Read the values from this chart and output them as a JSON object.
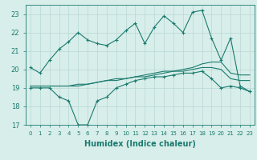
{
  "xlabel": "Humidex (Indice chaleur)",
  "background_color": "#d8eeea",
  "grid_color": "#b8d8d4",
  "line_color": "#1a7a6e",
  "xlim": [
    -0.5,
    23.5
  ],
  "ylim": [
    17,
    23.5
  ],
  "yticks": [
    17,
    18,
    19,
    20,
    21,
    22,
    23
  ],
  "xticks": [
    0,
    1,
    2,
    3,
    4,
    5,
    6,
    7,
    8,
    9,
    10,
    11,
    12,
    13,
    14,
    15,
    16,
    17,
    18,
    19,
    20,
    21,
    22,
    23
  ],
  "line1_x": [
    0,
    1,
    2,
    3,
    4,
    5,
    6,
    7,
    8,
    9,
    10,
    11,
    12,
    13,
    14,
    15,
    16,
    17,
    18,
    19,
    20,
    21,
    22,
    23
  ],
  "line1_y": [
    20.1,
    19.8,
    20.5,
    21.1,
    21.5,
    22.0,
    21.6,
    21.4,
    21.3,
    21.6,
    22.1,
    22.5,
    21.4,
    22.3,
    22.9,
    22.5,
    22.0,
    23.1,
    23.2,
    21.7,
    20.5,
    21.7,
    19.1,
    18.8
  ],
  "line2_x": [
    0,
    1,
    2,
    3,
    4,
    5,
    6,
    7,
    8,
    9,
    10,
    11,
    12,
    13,
    14,
    15,
    16,
    17,
    18,
    19,
    20,
    21,
    22,
    23
  ],
  "line2_y": [
    19.1,
    19.1,
    19.1,
    19.1,
    19.1,
    19.2,
    19.2,
    19.3,
    19.4,
    19.5,
    19.5,
    19.6,
    19.7,
    19.8,
    19.9,
    19.9,
    20.0,
    20.1,
    20.3,
    20.4,
    20.4,
    19.8,
    19.7,
    19.7
  ],
  "line3_x": [
    0,
    1,
    2,
    3,
    4,
    5,
    6,
    7,
    8,
    9,
    10,
    11,
    12,
    13,
    14,
    15,
    16,
    17,
    18,
    19,
    20,
    21,
    22,
    23
  ],
  "line3_y": [
    19.1,
    19.1,
    19.1,
    19.1,
    19.1,
    19.1,
    19.2,
    19.3,
    19.4,
    19.4,
    19.5,
    19.6,
    19.6,
    19.7,
    19.8,
    19.9,
    19.9,
    20.0,
    20.1,
    20.1,
    20.0,
    19.5,
    19.4,
    19.4
  ],
  "line4_x": [
    0,
    1,
    2,
    3,
    4,
    5,
    6,
    7,
    8,
    9,
    10,
    11,
    12,
    13,
    14,
    15,
    16,
    17,
    18,
    19,
    20,
    21,
    22,
    23
  ],
  "line4_y": [
    19.0,
    19.0,
    19.0,
    18.5,
    18.3,
    17.0,
    17.0,
    18.3,
    18.5,
    19.0,
    19.2,
    19.4,
    19.5,
    19.6,
    19.6,
    19.7,
    19.8,
    19.8,
    19.9,
    19.5,
    19.0,
    19.1,
    19.0,
    18.8
  ]
}
